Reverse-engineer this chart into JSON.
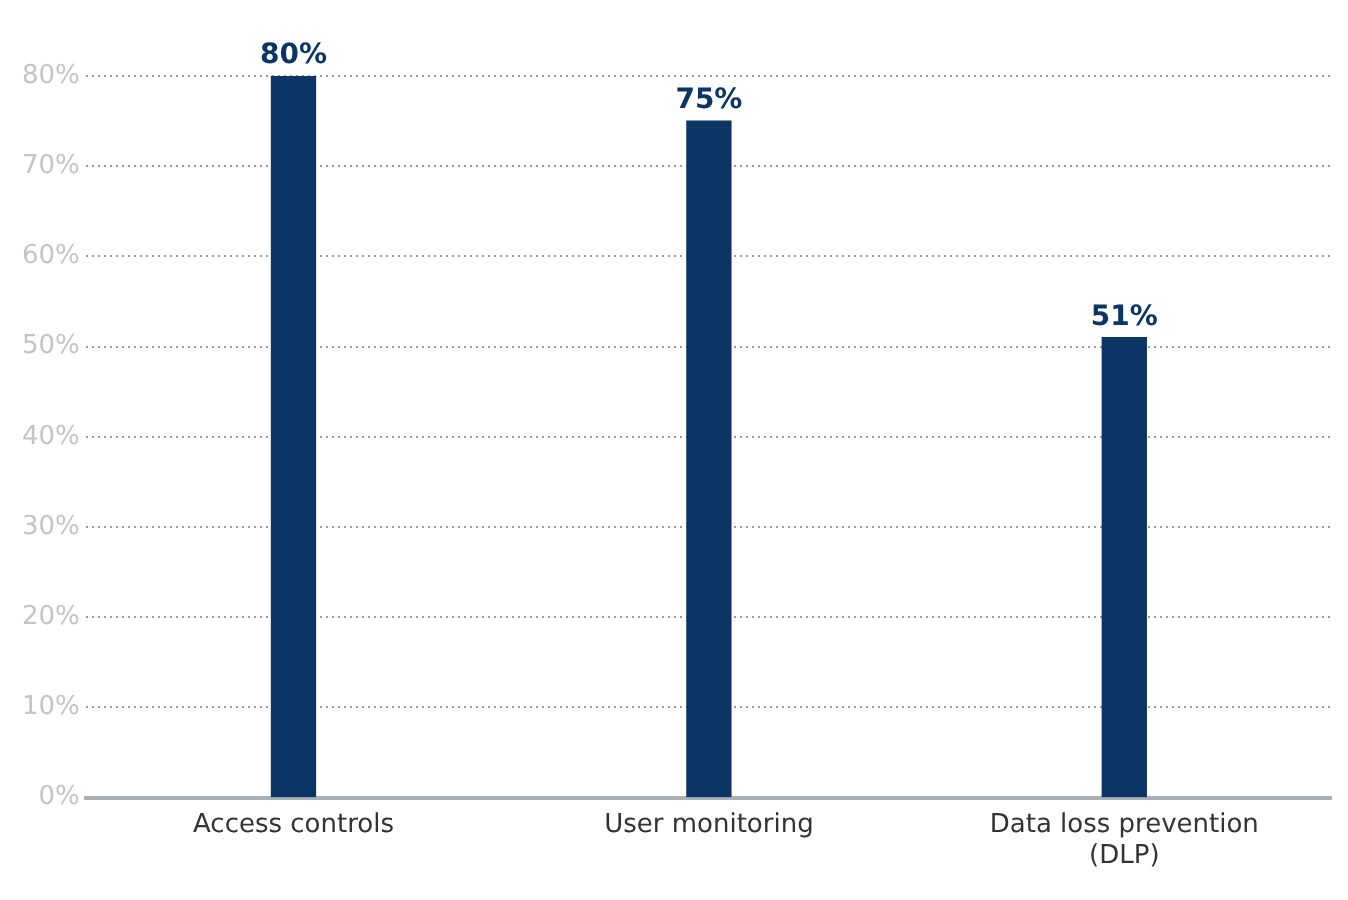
{
  "chart_data": {
    "type": "bar",
    "categories": [
      "Access controls",
      "User monitoring",
      "Data loss prevention (DLP)"
    ],
    "values": [
      80,
      75,
      51
    ],
    "color": "#0b3564",
    "value_labels": [
      "80%",
      "75%",
      "51%"
    ],
    "ylim": [
      0,
      80
    ],
    "yticks": [
      {
        "value": 0,
        "label": "0%"
      },
      {
        "value": 10,
        "label": "10%"
      },
      {
        "value": 20,
        "label": "20%"
      },
      {
        "value": 30,
        "label": "30%"
      },
      {
        "value": 40,
        "label": "40%"
      },
      {
        "value": 50,
        "label": "50%"
      },
      {
        "value": 60,
        "label": "60%"
      },
      {
        "value": 70,
        "label": "70%"
      },
      {
        "value": 80,
        "label": "80%"
      }
    ],
    "grid": "y"
  }
}
